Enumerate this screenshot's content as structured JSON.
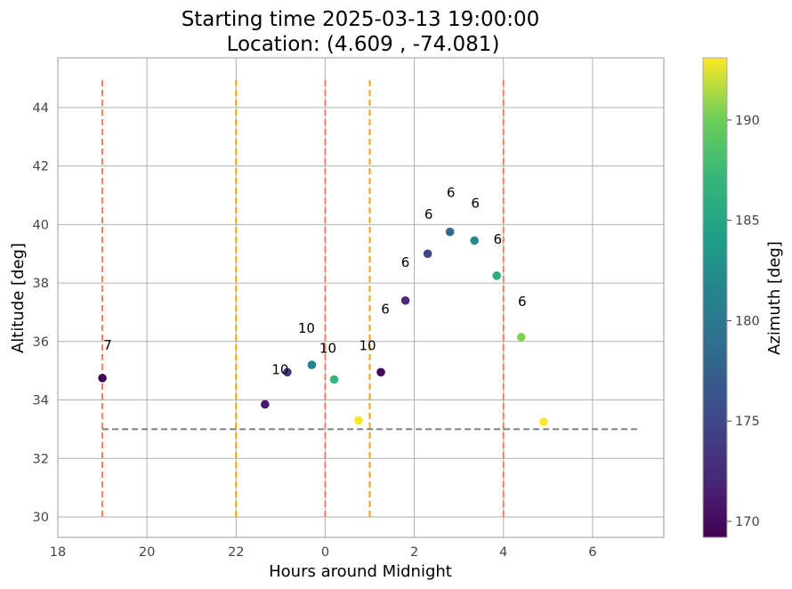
{
  "chart_data": {
    "type": "scatter",
    "title_line1": "Starting time 2025-03-13 19:00:00",
    "title_line2": "Location: (4.609 , -74.081)",
    "xlabel": "Hours around Midnight",
    "ylabel": "Altitude [deg]",
    "xlim": [
      18,
      31.6
    ],
    "ylim": [
      29.3,
      45.7
    ],
    "x_ticks": [
      {
        "value": 18,
        "label": "18"
      },
      {
        "value": 20,
        "label": "20"
      },
      {
        "value": 22,
        "label": "22"
      },
      {
        "value": 24,
        "label": "0"
      },
      {
        "value": 26,
        "label": "2"
      },
      {
        "value": 28,
        "label": "4"
      },
      {
        "value": 30,
        "label": "6"
      }
    ],
    "y_ticks": [
      30,
      32,
      34,
      36,
      38,
      40,
      42,
      44
    ],
    "grid": true,
    "colorbar": {
      "label": "Azimuth [deg]",
      "range": [
        169.2,
        193.1
      ],
      "ticks": [
        170,
        175,
        180,
        185,
        190
      ],
      "colormap": "viridis"
    },
    "points": [
      {
        "x": 19.0,
        "y": 34.75,
        "azimuth": 169.5,
        "label": "7"
      },
      {
        "x": 22.65,
        "y": 33.85,
        "azimuth": 171.0,
        "label": ""
      },
      {
        "x": 23.15,
        "y": 34.95,
        "azimuth": 174.0,
        "label": "10"
      },
      {
        "x": 23.7,
        "y": 35.2,
        "azimuth": 181.0,
        "label": "10"
      },
      {
        "x": 24.2,
        "y": 34.7,
        "azimuth": 187.0,
        "label": "10"
      },
      {
        "x": 24.75,
        "y": 33.3,
        "azimuth": 193.0,
        "label": "10"
      },
      {
        "x": 25.25,
        "y": 34.95,
        "azimuth": 169.8,
        "label": "6"
      },
      {
        "x": 25.8,
        "y": 37.4,
        "azimuth": 172.5,
        "label": "6"
      },
      {
        "x": 26.3,
        "y": 39.0,
        "azimuth": 175.0,
        "label": "6"
      },
      {
        "x": 26.8,
        "y": 39.75,
        "azimuth": 178.5,
        "label": "6"
      },
      {
        "x": 27.35,
        "y": 39.45,
        "azimuth": 182.0,
        "label": "6"
      },
      {
        "x": 27.85,
        "y": 38.25,
        "azimuth": 186.0,
        "label": "6"
      },
      {
        "x": 28.4,
        "y": 36.15,
        "azimuth": 190.5,
        "label": "6"
      },
      {
        "x": 28.9,
        "y": 33.25,
        "azimuth": 193.0,
        "label": ""
      }
    ],
    "label_offsets_note": "",
    "vertical_lines": [
      {
        "x": 19.0,
        "color": "#f47c64",
        "y0": 30,
        "y1": 45
      },
      {
        "x": 22.0,
        "color": "#f5a300",
        "y0": 30,
        "y1": 45
      },
      {
        "x": 24.0,
        "color": "#f47c64",
        "y0": 30,
        "y1": 45
      },
      {
        "x": 25.0,
        "color": "#f5a300",
        "y0": 30,
        "y1": 45
      },
      {
        "x": 28.0,
        "color": "#f47c64",
        "y0": 30,
        "y1": 45
      }
    ],
    "horizontal_line": {
      "y": 33.0,
      "x0": 19.0,
      "x1": 31.0,
      "color": "#808080"
    }
  }
}
